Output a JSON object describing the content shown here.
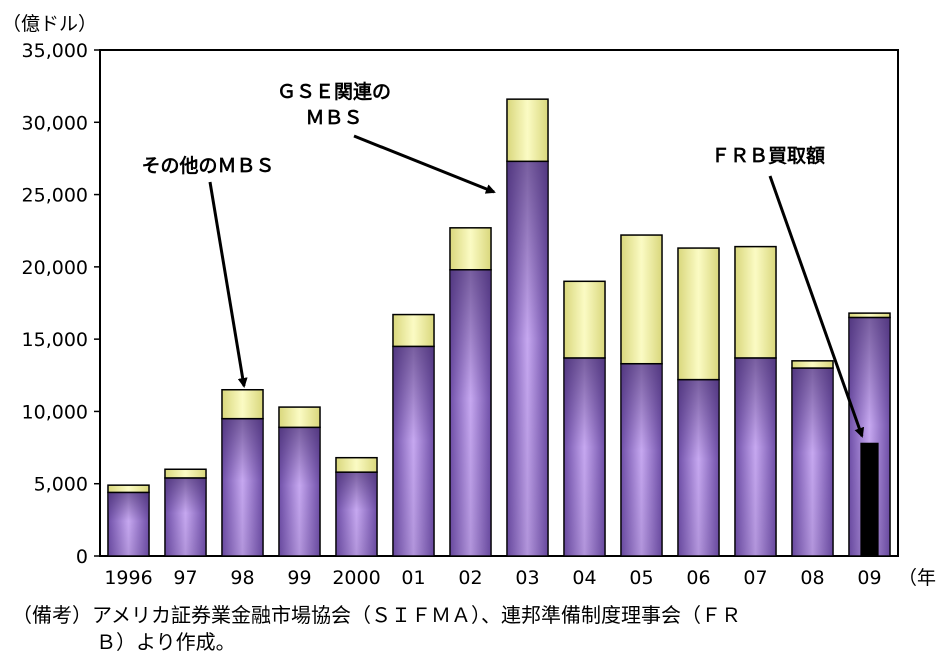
{
  "chart_data": {
    "type": "bar",
    "stacked": true,
    "y_unit_label": "（億ドル）",
    "x_unit_label": "（年）",
    "categories": [
      "1996",
      "97",
      "98",
      "99",
      "2000",
      "01",
      "02",
      "03",
      "04",
      "05",
      "06",
      "07",
      "08",
      "09"
    ],
    "series": [
      {
        "name": "GSE関連のMBS",
        "values": [
          4400,
          5400,
          9500,
          8900,
          5800,
          14500,
          19800,
          27300,
          13700,
          13300,
          12200,
          13700,
          13000,
          16500
        ],
        "color": "#9b7fd6"
      },
      {
        "name": "その他のMBS",
        "values": [
          500,
          600,
          2000,
          1400,
          1000,
          2200,
          2900,
          4300,
          5300,
          8900,
          9100,
          7700,
          500,
          300
        ],
        "color": "#f3f3a6"
      },
      {
        "name": "FRB買取額",
        "category": "09",
        "value": 7800,
        "color": "#000000"
      }
    ],
    "ylim": [
      0,
      35000
    ],
    "yticks": [
      "0",
      "5,000",
      "10,000",
      "15,000",
      "20,000",
      "25,000",
      "30,000",
      "35,000"
    ],
    "annotations": {
      "gse": [
        "ＧＳＥ関連の",
        "ＭＢＳ"
      ],
      "other": "その他のＭＢＳ",
      "frb": "ＦＲＢ買取額"
    }
  },
  "note": {
    "line1": "（備考）アメリカ証券業金融市場協会（ＳＩＦＭＡ）、連邦準備制度理事会（ＦＲ",
    "line2": "Ｂ）より作成。"
  }
}
